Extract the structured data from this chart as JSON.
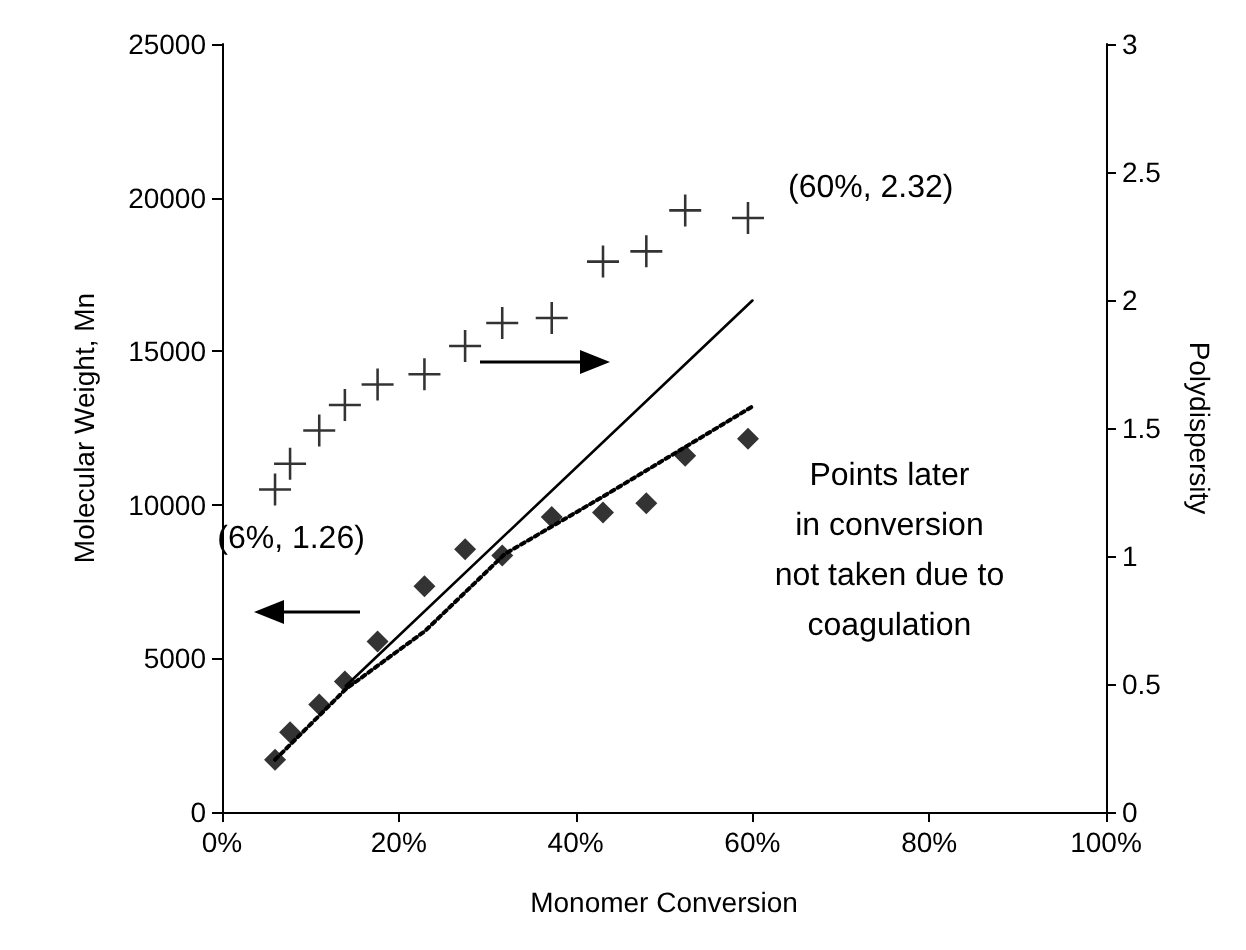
{
  "chart_data": {
    "type": "scatter",
    "xlabel": "Monomer Conversion",
    "ylabel": "Molecular Weight, Mn",
    "y2label": "Polydispersity",
    "xlim": [
      0,
      100
    ],
    "xticks": [
      {
        "value": 0,
        "label": "0%"
      },
      {
        "value": 20,
        "label": "20%"
      },
      {
        "value": 40,
        "label": "40%"
      },
      {
        "value": 60,
        "label": "60%"
      },
      {
        "value": 80,
        "label": "80%"
      },
      {
        "value": 100,
        "label": "100%"
      }
    ],
    "ylim": [
      0,
      25000
    ],
    "yticks": [
      0,
      5000,
      10000,
      15000,
      20000,
      25000
    ],
    "y2lim": [
      0,
      3
    ],
    "y2ticks": [
      0,
      0.5,
      1,
      1.5,
      2,
      2.5,
      3
    ],
    "grid": false,
    "series": [
      {
        "color": "#000000",
        "marker": "diamond",
        "x": [
          6,
          7.7,
          11,
          13.9,
          17.6,
          22.9,
          27.5,
          31.7,
          37.3,
          43.1,
          48,
          52.4,
          59.5
        ],
        "values": [
          1700,
          2600,
          3500,
          4250,
          5550,
          7350,
          8550,
          8350,
          9600,
          9750,
          10050,
          11600,
          12150
        ]
      },
      {
        "color": "#000000",
        "marker": "cross",
        "axis": "y2",
        "x": [
          6,
          7.7,
          11,
          13.9,
          17.6,
          22.9,
          27.5,
          31.7,
          37.3,
          43.1,
          48,
          52.4,
          59.5
        ],
        "values": [
          1.26,
          1.36,
          1.49,
          1.59,
          1.67,
          1.71,
          1.82,
          1.91,
          1.93,
          2.15,
          2.19,
          2.35,
          2.32
        ]
      },
      {
        "type": "line",
        "color": "#000000",
        "marker": "none",
        "line_style": "solid",
        "x": [
          14,
          60
        ],
        "values": [
          4100,
          16650
        ]
      },
      {
        "type": "line",
        "color": "#000000",
        "marker": "none",
        "line_style": "dotted",
        "x": [
          6,
          14,
          23,
          32,
          43,
          60
        ],
        "values": [
          1700,
          4000,
          5900,
          8400,
          10250,
          13200
        ]
      }
    ],
    "annotations": [
      "(6%, 1.26)",
      "(60%, 2.32)",
      "Points later\nin conversion\nnot taken due to\ncoagulation"
    ]
  }
}
